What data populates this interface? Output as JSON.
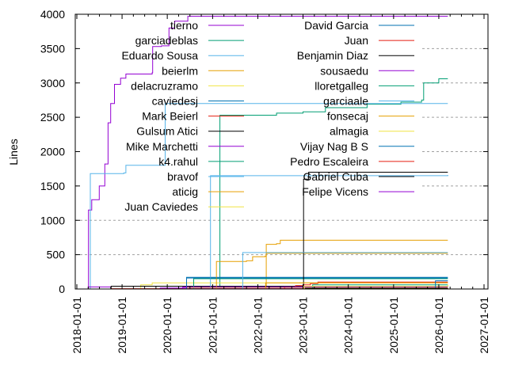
{
  "chart_data": {
    "type": "line",
    "title": "",
    "xlabel": "",
    "ylabel": "Lines",
    "ylim": [
      0,
      4000
    ],
    "xlim": [
      "2018-01-01",
      "2027-01-01"
    ],
    "yticks": [
      "0",
      "500",
      "1000",
      "1500",
      "2000",
      "2500",
      "3000",
      "3500",
      "4000"
    ],
    "xticks": [
      "2018-01-01",
      "2019-01-01",
      "2020-01-01",
      "2021-01-01",
      "2022-01-01",
      "2023-01-01",
      "2024-01-01",
      "2025-01-01",
      "2026-01-01",
      "2027-01-01"
    ],
    "grid": "horizontal dashed",
    "legend_position": "top (two columns)",
    "series": [
      {
        "name": "tierno",
        "color": "#9400d3",
        "points": [
          [
            "2018-04-01",
            0
          ],
          [
            "2018-04-05",
            1150
          ],
          [
            "2018-05-01",
            1300
          ],
          [
            "2018-07-01",
            1500
          ],
          [
            "2018-08-15",
            1820
          ],
          [
            "2018-09-10",
            2420
          ],
          [
            "2018-10-01",
            2700
          ],
          [
            "2018-11-01",
            2980
          ],
          [
            "2018-12-20",
            3070
          ],
          [
            "2019-02-01",
            3130
          ],
          [
            "2019-09-01",
            3150
          ],
          [
            "2019-09-05",
            3530
          ],
          [
            "2019-11-15",
            3540
          ],
          [
            "2020-01-15",
            3800
          ],
          [
            "2020-03-01",
            3900
          ],
          [
            "2020-06-15",
            3970
          ],
          [
            "2026-03-15",
            3970
          ]
        ]
      },
      {
        "name": "garciadeblas",
        "color": "#009e73",
        "points": [
          [
            "2020-11-01",
            0
          ],
          [
            "2021-03-01",
            2530
          ],
          [
            "2022-06-01",
            2560
          ],
          [
            "2023-01-01",
            2580
          ],
          [
            "2023-07-01",
            2640
          ],
          [
            "2024-06-01",
            2690
          ],
          [
            "2025-03-01",
            2720
          ],
          [
            "2025-08-15",
            2750
          ],
          [
            "2025-09-01",
            3000
          ],
          [
            "2026-01-01",
            3060
          ],
          [
            "2026-03-15",
            3060
          ]
        ]
      },
      {
        "name": "Eduardo Sousa",
        "color": "#56b4e9",
        "points": [
          [
            "2018-04-10",
            0
          ],
          [
            "2018-04-20",
            1680
          ],
          [
            "2019-01-15",
            1690
          ],
          [
            "2019-02-01",
            1800
          ],
          [
            "2019-11-01",
            1800
          ],
          [
            "2019-12-15",
            2700
          ],
          [
            "2026-03-15",
            2700
          ]
        ]
      },
      {
        "name": "beierlm",
        "color": "#e69f00",
        "points": [
          [
            "2022-03-01",
            0
          ],
          [
            "2022-03-10",
            650
          ],
          [
            "2022-06-01",
            660
          ],
          [
            "2022-07-01",
            710
          ],
          [
            "2026-03-15",
            710
          ]
        ]
      },
      {
        "name": "delacruzramo",
        "color": "#f0e442",
        "points": [
          [
            "2019-05-01",
            0
          ],
          [
            "2019-06-01",
            60
          ],
          [
            "2019-09-01",
            90
          ],
          [
            "2026-03-15",
            90
          ]
        ]
      },
      {
        "name": "caviedesj",
        "color": "#0072b2",
        "points": [
          [
            "2020-06-01",
            0
          ],
          [
            "2020-06-05",
            170
          ],
          [
            "2026-03-15",
            170
          ]
        ]
      },
      {
        "name": "Mark Beierl",
        "color": "#e51e10",
        "points": [
          [
            "2018-10-01",
            5
          ],
          [
            "2026-03-15",
            10
          ]
        ]
      },
      {
        "name": "Gulsum Atici",
        "color": "#000000",
        "points": [
          [
            "2018-10-01",
            0
          ],
          [
            "2018-10-05",
            40
          ],
          [
            "2026-03-15",
            40
          ]
        ]
      },
      {
        "name": "Mike Marchetti",
        "color": "#9400d3",
        "points": [
          [
            "2019-11-01",
            0
          ],
          [
            "2019-11-05",
            15
          ],
          [
            "2023-01-01",
            15
          ]
        ]
      },
      {
        "name": "k4.rahul",
        "color": "#009e73",
        "points": [
          [
            "2020-06-15",
            0
          ],
          [
            "2020-08-01",
            150
          ],
          [
            "2026-03-15",
            150
          ]
        ]
      },
      {
        "name": "bravof",
        "color": "#56b4e9",
        "points": [
          [
            "2020-08-01",
            0
          ],
          [
            "2020-12-15",
            1650
          ],
          [
            "2026-03-15",
            1660
          ]
        ]
      },
      {
        "name": "aticig",
        "color": "#e69f00",
        "points": [
          [
            "2021-01-15",
            0
          ],
          [
            "2021-02-01",
            400
          ],
          [
            "2021-10-01",
            410
          ],
          [
            "2021-11-20",
            470
          ],
          [
            "2022-03-01",
            480
          ],
          [
            "2022-03-10",
            520
          ],
          [
            "2026-03-15",
            520
          ]
        ]
      },
      {
        "name": "Juan Caviedes",
        "color": "#f0e442",
        "points": [
          [
            "2020-06-01",
            0
          ],
          [
            "2020-06-05",
            20
          ],
          [
            "2026-03-15",
            20
          ]
        ]
      },
      {
        "name": "David Garcia",
        "color": "#0072b2",
        "points": [
          [
            "2020-06-01",
            0
          ],
          [
            "2020-06-05",
            160
          ],
          [
            "2026-03-15",
            160
          ]
        ]
      },
      {
        "name": "Juan",
        "color": "#e51e10",
        "points": [
          [
            "2022-08-01",
            0
          ],
          [
            "2022-08-05",
            30
          ],
          [
            "2022-11-01",
            50
          ],
          [
            "2023-01-01",
            60
          ],
          [
            "2023-03-01",
            80
          ],
          [
            "2023-05-01",
            100
          ],
          [
            "2026-03-15",
            100
          ]
        ]
      },
      {
        "name": "Benjamin Diaz",
        "color": "#000000",
        "points": [
          [
            "2023-01-01",
            0
          ],
          [
            "2023-01-05",
            1600
          ],
          [
            "2023-02-15",
            1700
          ],
          [
            "2026-03-15",
            1700
          ]
        ]
      },
      {
        "name": "sousaedu",
        "color": "#9400d3",
        "points": [
          [
            "2020-05-01",
            0
          ],
          [
            "2020-05-05",
            30
          ],
          [
            "2026-03-15",
            30
          ]
        ]
      },
      {
        "name": "lloretgalleg",
        "color": "#009e73",
        "points": [
          [
            "2023-03-15",
            0
          ],
          [
            "2023-03-20",
            60
          ],
          [
            "2026-03-15",
            60
          ]
        ]
      },
      {
        "name": "garciaale",
        "color": "#56b4e9",
        "points": [
          [
            "2021-03-01",
            0
          ],
          [
            "2021-09-01",
            530
          ],
          [
            "2026-03-15",
            530
          ]
        ]
      },
      {
        "name": "fonsecaj",
        "color": "#e69f00",
        "points": [
          [
            "2022-03-01",
            0
          ],
          [
            "2022-03-05",
            90
          ],
          [
            "2026-03-15",
            90
          ]
        ]
      },
      {
        "name": "almagia",
        "color": "#f0e442",
        "points": [
          [
            "2023-01-01",
            0
          ],
          [
            "2023-01-05",
            40
          ],
          [
            "2026-03-15",
            60
          ]
        ]
      },
      {
        "name": "Vijay Nag B S",
        "color": "#0072b2",
        "points": [
          [
            "2025-12-01",
            0
          ],
          [
            "2025-12-05",
            120
          ],
          [
            "2026-03-15",
            120
          ]
        ]
      },
      {
        "name": "Pedro Escaleira",
        "color": "#e51e10",
        "points": [
          [
            "2023-01-15",
            0
          ],
          [
            "2023-01-20",
            10
          ],
          [
            "2026-03-15",
            10
          ]
        ]
      },
      {
        "name": "Gabriel Cuba",
        "color": "#000000",
        "points": [
          [
            "2023-01-15",
            0
          ],
          [
            "2023-01-20",
            10
          ],
          [
            "2026-03-15",
            10
          ]
        ]
      },
      {
        "name": "Felipe Vicens",
        "color": "#9400d3",
        "points": [
          [
            "2018-04-01",
            30
          ],
          [
            "2018-10-01",
            30
          ]
        ]
      }
    ]
  }
}
